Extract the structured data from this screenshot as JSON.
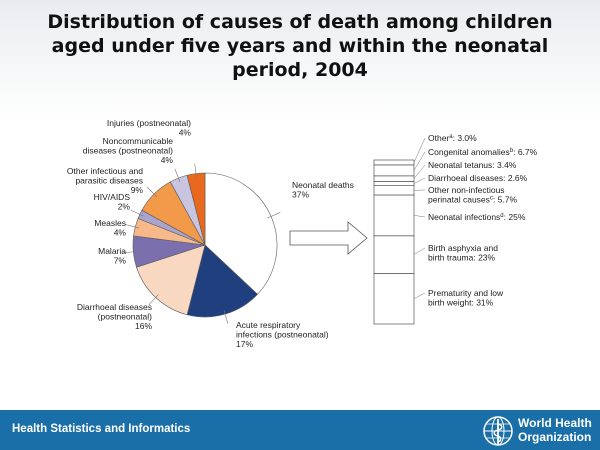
{
  "title_lines": [
    "Distribution of causes of death among children",
    "aged under five years and within the neonatal",
    "period, 2004"
  ],
  "footer": {
    "left_text": "Health Statistics and Informatics",
    "logo_lines": [
      "World Health",
      "Organization"
    ],
    "logo_icon": "who-emblem-icon"
  },
  "colors": {
    "footer_bg": "#1b6fa8",
    "neonatal": "#ffffff",
    "respiratory": "#1f3f7f",
    "diarrhoeal": "#f9d8c1",
    "malaria": "#7b6fae",
    "measles": "#f7b98a",
    "hiv": "#a9a4cd",
    "other_infectious": "#f2994a",
    "noncommunicable": "#c9c5e0",
    "injuries": "#e8691d"
  },
  "chart_data": [
    {
      "type": "pie",
      "title": "",
      "slices": [
        {
          "name": "Neonatal deaths",
          "value": 37,
          "label": "37%",
          "color": "#ffffff"
        },
        {
          "name": "Acute respiratory infections (postneonatal)",
          "value": 17,
          "label": "17%",
          "color": "#1f3f7f"
        },
        {
          "name": "Diarrhoeal diseases (postneonatal)",
          "value": 16,
          "label": "16%",
          "color": "#f9d8c1"
        },
        {
          "name": "Malaria",
          "value": 7,
          "label": "7%",
          "color": "#7b6fae"
        },
        {
          "name": "Measles",
          "value": 4,
          "label": "4%",
          "color": "#f7b98a"
        },
        {
          "name": "HIV/AIDS",
          "value": 2,
          "label": "2%",
          "color": "#a9a4cd"
        },
        {
          "name": "Other infectious and parasitic diseases",
          "value": 9,
          "label": "9%",
          "color": "#f2994a"
        },
        {
          "name": "Noncommunicable diseases (postneonatal)",
          "value": 4,
          "label": "4%",
          "color": "#c9c5e0"
        },
        {
          "name": "Injuries (postneonatal)",
          "value": 4,
          "label": "4%",
          "color": "#e8691d"
        }
      ]
    },
    {
      "type": "bar",
      "stacked": true,
      "title": "",
      "segments": [
        {
          "name": "Prematurity and low birth weight",
          "value": 31,
          "label": "31%"
        },
        {
          "name": "Birth asphyxia and birth trauma",
          "value": 23,
          "label": "23%"
        },
        {
          "name": "Neonatal infections",
          "sup": "d",
          "value": 25,
          "label": "25%"
        },
        {
          "name": "Other non-infectious perinatal causes",
          "sup": "c",
          "value": 5.7,
          "label": "5.7%"
        },
        {
          "name": "Diarrhoeal diseases",
          "value": 2.6,
          "label": "2.6%"
        },
        {
          "name": "Neonatal tetanus",
          "value": 3.4,
          "label": "3.4%"
        },
        {
          "name": "Congenital anomalies",
          "sup": "b",
          "value": 6.7,
          "label": "6.7%"
        },
        {
          "name": "Other",
          "sup": "a",
          "value": 3.0,
          "label": "3.0%"
        }
      ]
    }
  ]
}
